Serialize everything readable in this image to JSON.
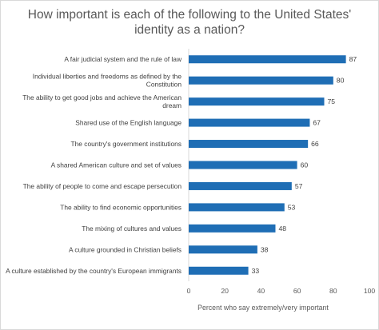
{
  "chart_data": {
    "type": "bar",
    "orientation": "horizontal",
    "title": "How important is each of the following to the United States'\nidentity as a nation?",
    "xlabel": "Percent who say extremely/very important",
    "ylabel": "",
    "xlim": [
      0,
      100
    ],
    "xticks": [
      0,
      20,
      40,
      60,
      80,
      100
    ],
    "grid": false,
    "bar_color": "#1f6eb5",
    "categories": [
      [
        "A fair judicial system and the rule of law"
      ],
      [
        "Individual liberties and freedoms as defined by the",
        "Constitution"
      ],
      [
        "The ability to get good jobs and achieve the American",
        "dream"
      ],
      [
        "Shared use of the English language"
      ],
      [
        "The country's government institutions"
      ],
      [
        "A shared American culture and set of values"
      ],
      [
        "The ability of people to come and escape persecution"
      ],
      [
        "The ability to find economic opportunities"
      ],
      [
        "The mixing of cultures and values"
      ],
      [
        "A culture grounded in Christian beliefs"
      ],
      [
        "A culture established by the country's European immigrants"
      ]
    ],
    "values": [
      87,
      80,
      75,
      67,
      66,
      60,
      57,
      53,
      48,
      38,
      33
    ]
  }
}
